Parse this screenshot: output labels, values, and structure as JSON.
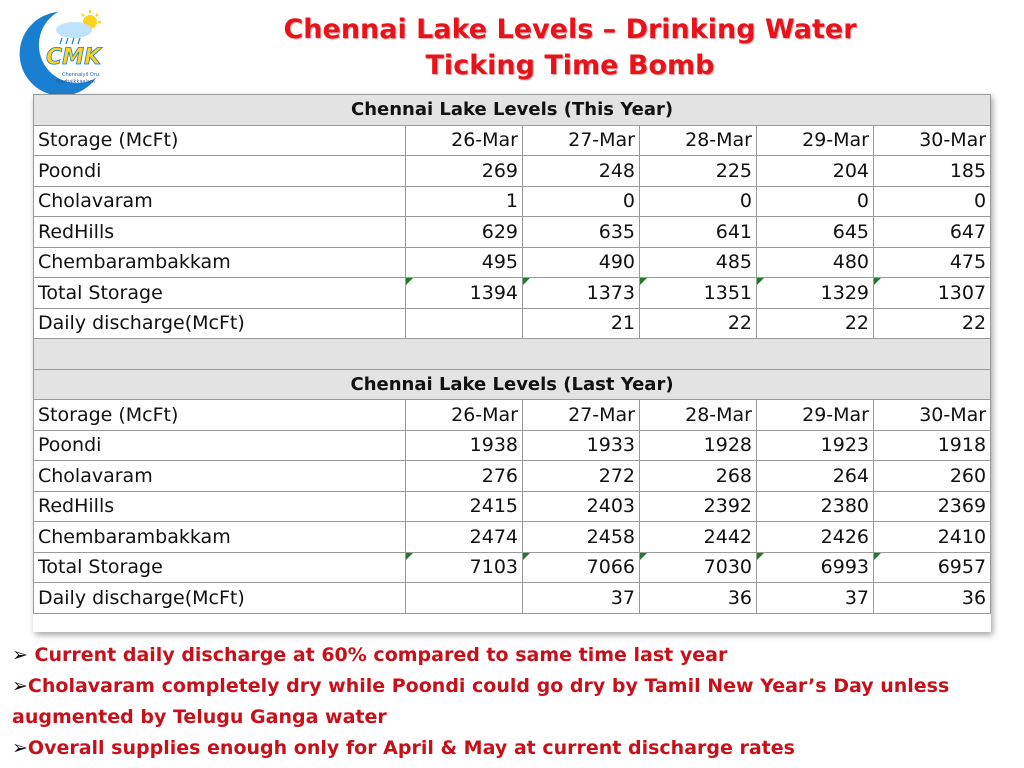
{
  "title": {
    "line1": "Chennai Lake Levels – Drinking Water",
    "line2": "Ticking Time Bomb"
  },
  "logo": {
    "brand": "CMK",
    "tagline_1": "Chennaiyil Oru",
    "tagline_2": "Mazhaikkaalam"
  },
  "colors": {
    "title_red": "#e8131a",
    "bullet_red": "#c8101a",
    "logo_blue": "#1a7fd1",
    "logo_yellow": "#ffd21f",
    "section_grey": "#e3e3e3"
  },
  "this_year": {
    "heading": "Chennai Lake Levels (This Year)",
    "columns": [
      "Storage (McFt)",
      "26-Mar",
      "27-Mar",
      "28-Mar",
      "29-Mar",
      "30-Mar"
    ],
    "rows": [
      {
        "label": "Poondi",
        "values": [
          "269",
          "248",
          "225",
          "204",
          "185"
        ]
      },
      {
        "label": "Cholavaram",
        "values": [
          "1",
          "0",
          "0",
          "0",
          "0"
        ]
      },
      {
        "label": "RedHills",
        "values": [
          "629",
          "635",
          "641",
          "645",
          "647"
        ]
      },
      {
        "label": "Chembarambakkam",
        "values": [
          "495",
          "490",
          "485",
          "480",
          "475"
        ]
      },
      {
        "label": "Total Storage",
        "values": [
          "1394",
          "1373",
          "1351",
          "1329",
          "1307"
        ]
      },
      {
        "label": "Daily discharge(McFt)",
        "values": [
          "",
          "21",
          "22",
          "22",
          "22"
        ]
      }
    ]
  },
  "last_year": {
    "heading": "Chennai Lake Levels (Last Year)",
    "columns": [
      "Storage (McFt)",
      "26-Mar",
      "27-Mar",
      "28-Mar",
      "29-Mar",
      "30-Mar"
    ],
    "rows": [
      {
        "label": "Poondi",
        "values": [
          "1938",
          "1933",
          "1928",
          "1923",
          "1918"
        ]
      },
      {
        "label": "Cholavaram",
        "values": [
          "276",
          "272",
          "268",
          "264",
          "260"
        ]
      },
      {
        "label": "RedHills",
        "values": [
          "2415",
          "2403",
          "2392",
          "2380",
          "2369"
        ]
      },
      {
        "label": "Chembarambakkam",
        "values": [
          "2474",
          "2458",
          "2442",
          "2426",
          "2410"
        ]
      },
      {
        "label": "Total Storage",
        "values": [
          "7103",
          "7066",
          "7030",
          "6993",
          "6957"
        ]
      },
      {
        "label": "Daily discharge(McFt)",
        "values": [
          "",
          "37",
          "36",
          "37",
          "36"
        ]
      }
    ]
  },
  "bullets": [
    "Current daily discharge at 60% compared to same time last year",
    "Cholavaram completely dry while Poondi could go dry by Tamil New Year’s Day unless augmented by Telugu Ganga water",
    "Overall supplies enough only for April & May at current discharge rates"
  ],
  "bullet_marker": "➢"
}
